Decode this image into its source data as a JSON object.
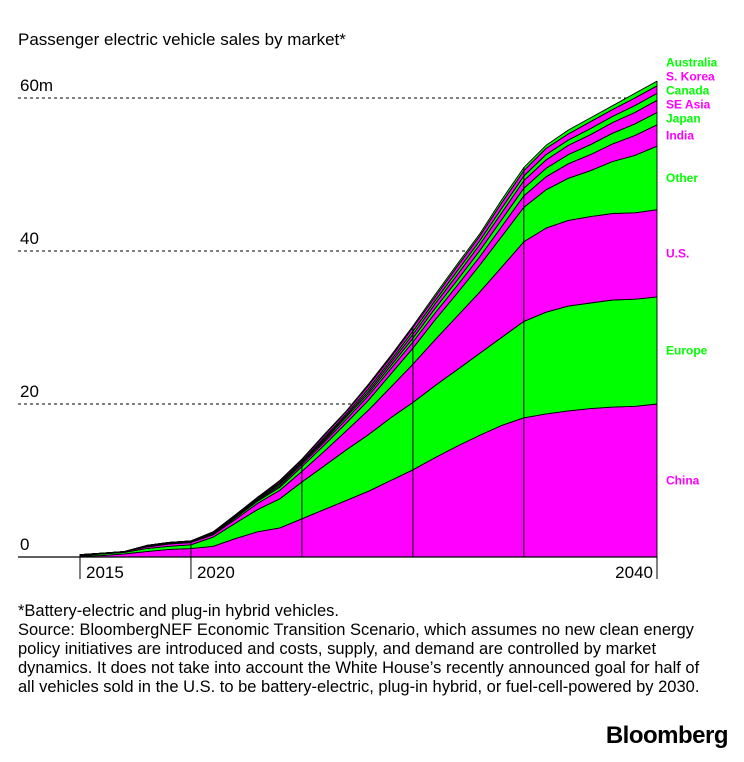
{
  "title": "Passenger electric vehicle sales by market*",
  "footnote": "*Battery-electric and plug-in hybrid vehicles.",
  "source": "Source: BloombergNEF Economic Transition Scenario, which assumes no new clean energy policy initiatives are introduced and costs, supply, and demand are controlled by market dynamics. It does not take into account the White House’s recently announced goal for half of all vehicles sold in the U.S. to be battery-electric, plug-in hybrid, or fuel-cell-powered by 2030.",
  "brand": "Bloomberg",
  "colors": {
    "pink": "#ff00ff",
    "green": "#00ff00"
  },
  "chart_data": {
    "type": "area",
    "stacked": true,
    "x": [
      2014,
      2015,
      2016,
      2017,
      2018,
      2019,
      2020,
      2021,
      2022,
      2023,
      2024,
      2025,
      2026,
      2027,
      2028,
      2029,
      2030,
      2031,
      2032,
      2033,
      2034,
      2035,
      2036,
      2037,
      2038,
      2039,
      2040
    ],
    "x_ticks": [
      "2015",
      "2020",
      "2040"
    ],
    "y_ticks": [
      "0",
      "20",
      "40",
      "60m"
    ],
    "ylim": [
      0,
      65
    ],
    "grid": "dashed horizontal at 20, 40, 60",
    "series": [
      {
        "name": "China",
        "color": "#ff00ff",
        "values": [
          0.1,
          0.2,
          0.4,
          0.7,
          1.0,
          1.1,
          1.4,
          2.4,
          3.3,
          3.8,
          5.0,
          6.2,
          7.4,
          8.6,
          10.0,
          11.4,
          13.0,
          14.5,
          15.9,
          17.2,
          18.2,
          18.7,
          19.1,
          19.4,
          19.6,
          19.7,
          20.0
        ]
      },
      {
        "name": "Europe",
        "color": "#00ff00",
        "values": [
          0.1,
          0.2,
          0.2,
          0.4,
          0.4,
          0.5,
          1.2,
          2.0,
          2.9,
          3.8,
          4.8,
          5.7,
          6.6,
          7.4,
          8.2,
          8.8,
          9.4,
          10.0,
          10.7,
          11.5,
          12.6,
          13.3,
          13.7,
          13.8,
          14.0,
          14.0,
          14.0
        ]
      },
      {
        "name": "U.S.",
        "color": "#ff00ff",
        "values": [
          0.1,
          0.1,
          0.1,
          0.2,
          0.3,
          0.3,
          0.3,
          0.5,
          0.8,
          1.1,
          1.4,
          1.9,
          2.5,
          3.2,
          4.0,
          5.0,
          6.0,
          7.0,
          8.0,
          9.2,
          10.4,
          11.0,
          11.2,
          11.3,
          11.3,
          11.3,
          11.4
        ]
      },
      {
        "name": "Other",
        "color": "#00ff00",
        "values": [
          0.0,
          0.0,
          0.0,
          0.1,
          0.1,
          0.1,
          0.1,
          0.2,
          0.3,
          0.4,
          0.6,
          0.8,
          1.0,
          1.3,
          1.7,
          2.1,
          2.6,
          3.0,
          3.5,
          4.0,
          4.5,
          5.0,
          5.5,
          6.0,
          6.8,
          7.5,
          8.3
        ]
      },
      {
        "name": "India",
        "color": "#ff00ff",
        "values": [
          0.0,
          0.0,
          0.0,
          0.0,
          0.0,
          0.0,
          0.1,
          0.1,
          0.1,
          0.2,
          0.3,
          0.4,
          0.5,
          0.6,
          0.7,
          0.8,
          0.9,
          1.0,
          1.1,
          1.3,
          1.5,
          1.7,
          1.9,
          2.1,
          2.3,
          2.6,
          2.8
        ]
      },
      {
        "name": "Japan",
        "color": "#00ff00",
        "values": [
          0.0,
          0.0,
          0.0,
          0.1,
          0.1,
          0.1,
          0.1,
          0.1,
          0.1,
          0.2,
          0.2,
          0.2,
          0.3,
          0.3,
          0.4,
          0.5,
          0.6,
          0.7,
          0.8,
          0.9,
          1.0,
          1.1,
          1.2,
          1.3,
          1.4,
          1.5,
          1.6
        ]
      },
      {
        "name": "SE Asia",
        "color": "#ff00ff",
        "values": [
          0.0,
          0.0,
          0.0,
          0.0,
          0.0,
          0.0,
          0.0,
          0.0,
          0.1,
          0.1,
          0.1,
          0.2,
          0.2,
          0.3,
          0.4,
          0.5,
          0.6,
          0.7,
          0.8,
          0.9,
          1.0,
          1.1,
          1.2,
          1.3,
          1.4,
          1.5,
          1.6
        ]
      },
      {
        "name": "Canada",
        "color": "#00ff00",
        "values": [
          0.0,
          0.0,
          0.0,
          0.0,
          0.0,
          0.0,
          0.0,
          0.1,
          0.1,
          0.1,
          0.1,
          0.2,
          0.2,
          0.3,
          0.3,
          0.4,
          0.4,
          0.5,
          0.5,
          0.6,
          0.6,
          0.7,
          0.7,
          0.8,
          0.8,
          0.9,
          0.9
        ]
      },
      {
        "name": "S. Korea",
        "color": "#ff00ff",
        "values": [
          0.0,
          0.0,
          0.0,
          0.0,
          0.0,
          0.0,
          0.1,
          0.1,
          0.1,
          0.2,
          0.2,
          0.3,
          0.3,
          0.4,
          0.4,
          0.5,
          0.5,
          0.6,
          0.6,
          0.7,
          0.7,
          0.8,
          0.8,
          0.9,
          0.9,
          1.0,
          1.0
        ]
      },
      {
        "name": "Australia",
        "color": "#00ff00",
        "values": [
          0.0,
          0.0,
          0.0,
          0.0,
          0.0,
          0.0,
          0.0,
          0.0,
          0.0,
          0.1,
          0.1,
          0.1,
          0.1,
          0.2,
          0.2,
          0.2,
          0.3,
          0.3,
          0.3,
          0.4,
          0.4,
          0.4,
          0.5,
          0.5,
          0.5,
          0.6,
          0.6
        ]
      }
    ]
  }
}
